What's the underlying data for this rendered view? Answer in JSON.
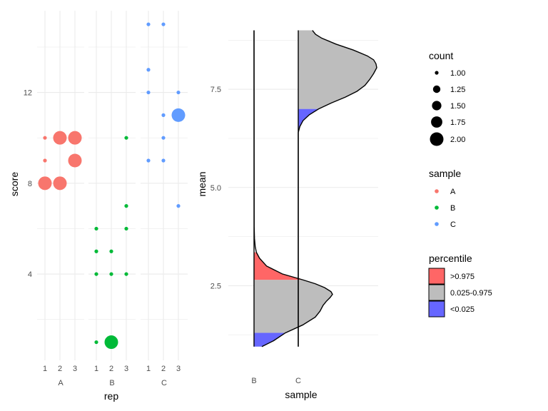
{
  "colors": {
    "A": "#F8766D",
    "B": "#00BA38",
    "C": "#619CFF",
    "above": "#FF6666",
    "middle": "#BDBDBD",
    "below": "#6666FF",
    "grid": "#EBEBEB"
  },
  "chart_data": [
    {
      "type": "scatter",
      "facet_var": "sample",
      "xlabel": "rep",
      "ylabel": "score",
      "x_ticks": [
        "1",
        "2",
        "3"
      ],
      "y_ticks": [
        "4",
        "8",
        "12"
      ],
      "ylim": [
        0.2,
        15.6
      ],
      "facets": [
        {
          "name": "A",
          "points": [
            {
              "x": 1,
              "y": 10,
              "count": 1
            },
            {
              "x": 2,
              "y": 10,
              "count": 2
            },
            {
              "x": 3,
              "y": 10,
              "count": 2
            },
            {
              "x": 1,
              "y": 9,
              "count": 1
            },
            {
              "x": 3,
              "y": 9,
              "count": 2
            },
            {
              "x": 1,
              "y": 8,
              "count": 2
            },
            {
              "x": 2,
              "y": 8,
              "count": 2
            }
          ]
        },
        {
          "name": "B",
          "points": [
            {
              "x": 3,
              "y": 10,
              "count": 1
            },
            {
              "x": 3,
              "y": 7,
              "count": 1
            },
            {
              "x": 1,
              "y": 6,
              "count": 1
            },
            {
              "x": 3,
              "y": 6,
              "count": 1
            },
            {
              "x": 1,
              "y": 5,
              "count": 1
            },
            {
              "x": 2,
              "y": 5,
              "count": 1
            },
            {
              "x": 1,
              "y": 4,
              "count": 1
            },
            {
              "x": 2,
              "y": 4,
              "count": 1
            },
            {
              "x": 3,
              "y": 4,
              "count": 1
            },
            {
              "x": 1,
              "y": 1,
              "count": 1
            },
            {
              "x": 2,
              "y": 1,
              "count": 2
            }
          ]
        },
        {
          "name": "C",
          "points": [
            {
              "x": 1,
              "y": 15,
              "count": 1
            },
            {
              "x": 2,
              "y": 15,
              "count": 1
            },
            {
              "x": 1,
              "y": 13,
              "count": 1
            },
            {
              "x": 1,
              "y": 12,
              "count": 1
            },
            {
              "x": 3,
              "y": 12,
              "count": 1
            },
            {
              "x": 2,
              "y": 11,
              "count": 1
            },
            {
              "x": 3,
              "y": 11,
              "count": 2
            },
            {
              "x": 2,
              "y": 10,
              "count": 1
            },
            {
              "x": 1,
              "y": 9,
              "count": 1
            },
            {
              "x": 2,
              "y": 9,
              "count": 1
            },
            {
              "x": 3,
              "y": 7,
              "count": 1
            }
          ]
        }
      ]
    },
    {
      "type": "area",
      "subtype": "half-violin",
      "xlabel": "sample",
      "ylabel": "mean",
      "categories": [
        "B",
        "C"
      ],
      "y_ticks": [
        "2.5",
        "5.0",
        "7.5"
      ],
      "ylim": [
        0.6,
        9.5
      ],
      "distributions": [
        {
          "category": "B",
          "y_min": 0.95,
          "y_max": 9.0,
          "q_low": 1.3,
          "q_high": 2.65,
          "shade_top": 3.35,
          "density_y": [
            0.95,
            1.1,
            1.3,
            1.5,
            1.7,
            1.85,
            2.0,
            2.1,
            2.2,
            2.28,
            2.35,
            2.45,
            2.55,
            2.65,
            2.8,
            3.0,
            3.2,
            3.35,
            3.5,
            3.7,
            4.0,
            9.0
          ],
          "density_w": [
            0.1,
            0.25,
            0.4,
            0.62,
            0.78,
            0.84,
            0.88,
            0.92,
            0.97,
            1.0,
            0.98,
            0.9,
            0.78,
            0.62,
            0.36,
            0.16,
            0.07,
            0.03,
            0.015,
            0.006,
            0.002,
            0.0
          ]
        },
        {
          "category": "C",
          "y_min": 0.95,
          "y_max": 9.0,
          "q_low": 7.0,
          "q_high": 9.0,
          "shade_top": 9.0,
          "density_y": [
            0.95,
            6.4,
            6.55,
            6.7,
            6.85,
            7.0,
            7.15,
            7.3,
            7.45,
            7.6,
            7.75,
            7.9,
            8.05,
            8.15,
            8.25,
            8.35,
            8.5,
            8.65,
            8.8,
            8.9,
            9.0
          ],
          "density_w": [
            0.0,
            0.0,
            0.02,
            0.06,
            0.14,
            0.26,
            0.42,
            0.6,
            0.75,
            0.85,
            0.91,
            0.96,
            1.0,
            0.99,
            0.96,
            0.88,
            0.7,
            0.48,
            0.3,
            0.22,
            0.18
          ]
        }
      ]
    }
  ],
  "legends": {
    "count": {
      "title": "count",
      "items": [
        "1.00",
        "1.25",
        "1.50",
        "1.75",
        "2.00"
      ],
      "sizes": [
        1.0,
        1.25,
        1.5,
        1.75,
        2.0
      ]
    },
    "sample": {
      "title": "sample",
      "items": [
        "A",
        "B",
        "C"
      ]
    },
    "percentile": {
      "title": "percentile",
      "items": [
        ">0.975",
        "0.025-0.975",
        "<0.025"
      ]
    }
  }
}
